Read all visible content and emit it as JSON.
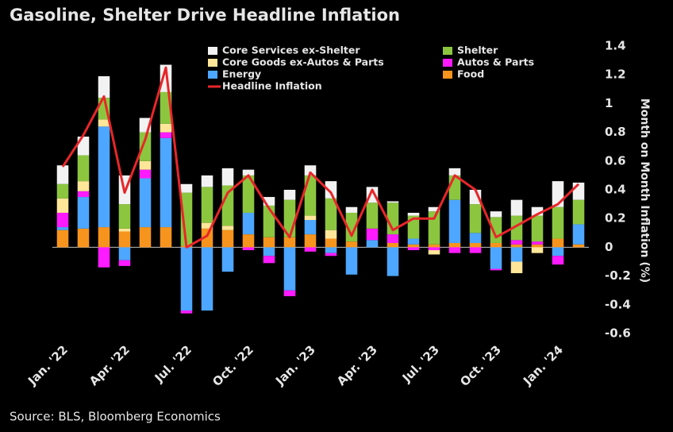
{
  "chart_data": {
    "type": "bar",
    "stacked": true,
    "title": "Gasoline, Shelter Drive Headline Inflation",
    "y_axis_label": "Month on Month Inflation (%)",
    "source": "Source: BLS, Bloomberg Economics",
    "categories": [
      "Jan. '22",
      null,
      null,
      "Apr. '22",
      null,
      null,
      "Jul. '22",
      null,
      null,
      "Oct. '22",
      null,
      null,
      "Jan. '23",
      null,
      null,
      "Apr. '23",
      null,
      null,
      "Jul. '23",
      null,
      null,
      "Oct. '23",
      null,
      null,
      "Jan. '24",
      null
    ],
    "ylim": [
      -0.6,
      1.4
    ],
    "yticks": [
      -0.6,
      -0.4,
      -0.2,
      0,
      0.2,
      0.4,
      0.6,
      0.8,
      1,
      1.2,
      1.4
    ],
    "series": [
      {
        "name": "Food",
        "color": "#f7941d",
        "values": [
          0.12,
          0.13,
          0.14,
          0.11,
          0.14,
          0.14,
          0.01,
          0.13,
          0.12,
          0.09,
          0.07,
          0.07,
          0.09,
          0.06,
          0.04,
          0.0,
          0.03,
          0.02,
          0.02,
          0.03,
          0.03,
          0.03,
          0.02,
          0.02,
          0.06,
          0.02
        ]
      },
      {
        "name": "Energy",
        "color": "#4da6ff",
        "values": [
          0.02,
          0.22,
          0.7,
          -0.09,
          0.34,
          0.62,
          -0.44,
          -0.44,
          -0.17,
          0.15,
          -0.06,
          -0.3,
          0.1,
          -0.04,
          -0.19,
          0.05,
          -0.2,
          0.04,
          0.0,
          0.3,
          0.07,
          -0.15,
          -0.1,
          0.0,
          -0.06,
          0.14
        ]
      },
      {
        "name": "Autos & Parts",
        "color": "#ff1aff",
        "values": [
          0.1,
          0.04,
          -0.14,
          -0.04,
          0.06,
          0.04,
          -0.02,
          0.0,
          0.0,
          -0.02,
          -0.05,
          -0.04,
          -0.03,
          -0.02,
          0.0,
          0.08,
          0.06,
          -0.02,
          -0.02,
          -0.04,
          -0.04,
          -0.01,
          0.03,
          0.02,
          -0.06,
          0.0
        ]
      },
      {
        "name": "Core Goods ex-Autos & Parts",
        "color": "#ffe699",
        "values": [
          0.1,
          0.07,
          0.05,
          0.02,
          0.06,
          0.06,
          0.0,
          0.04,
          0.03,
          0.0,
          0.0,
          0.0,
          0.03,
          0.06,
          0.0,
          0.0,
          0.0,
          0.0,
          -0.03,
          0.0,
          0.0,
          0.0,
          -0.08,
          -0.04,
          0.0,
          0.0
        ]
      },
      {
        "name": "Shelter",
        "color": "#8cc63f",
        "values": [
          0.1,
          0.18,
          0.15,
          0.17,
          0.2,
          0.22,
          0.37,
          0.25,
          0.28,
          0.26,
          0.22,
          0.26,
          0.28,
          0.22,
          0.2,
          0.18,
          0.22,
          0.16,
          0.23,
          0.17,
          0.2,
          0.18,
          0.17,
          0.18,
          0.22,
          0.17
        ]
      },
      {
        "name": "Core Services ex-Shelter",
        "color": "#f2f2f2",
        "values": [
          0.13,
          0.13,
          0.15,
          0.2,
          0.1,
          0.19,
          0.06,
          0.08,
          0.12,
          0.04,
          0.06,
          0.07,
          0.07,
          0.12,
          0.04,
          0.11,
          0.01,
          0.02,
          0.03,
          0.05,
          0.1,
          0.04,
          0.11,
          0.06,
          0.18,
          0.12
        ]
      },
      {
        "name": "Headline Inflation",
        "type": "line",
        "color": "#e8262a",
        "values": [
          0.56,
          0.78,
          1.05,
          0.38,
          0.75,
          1.25,
          0.0,
          0.08,
          0.38,
          0.5,
          0.27,
          0.07,
          0.52,
          0.38,
          0.08,
          0.4,
          0.12,
          0.2,
          0.2,
          0.5,
          0.4,
          0.07,
          0.15,
          0.23,
          0.3,
          0.44
        ]
      }
    ]
  }
}
